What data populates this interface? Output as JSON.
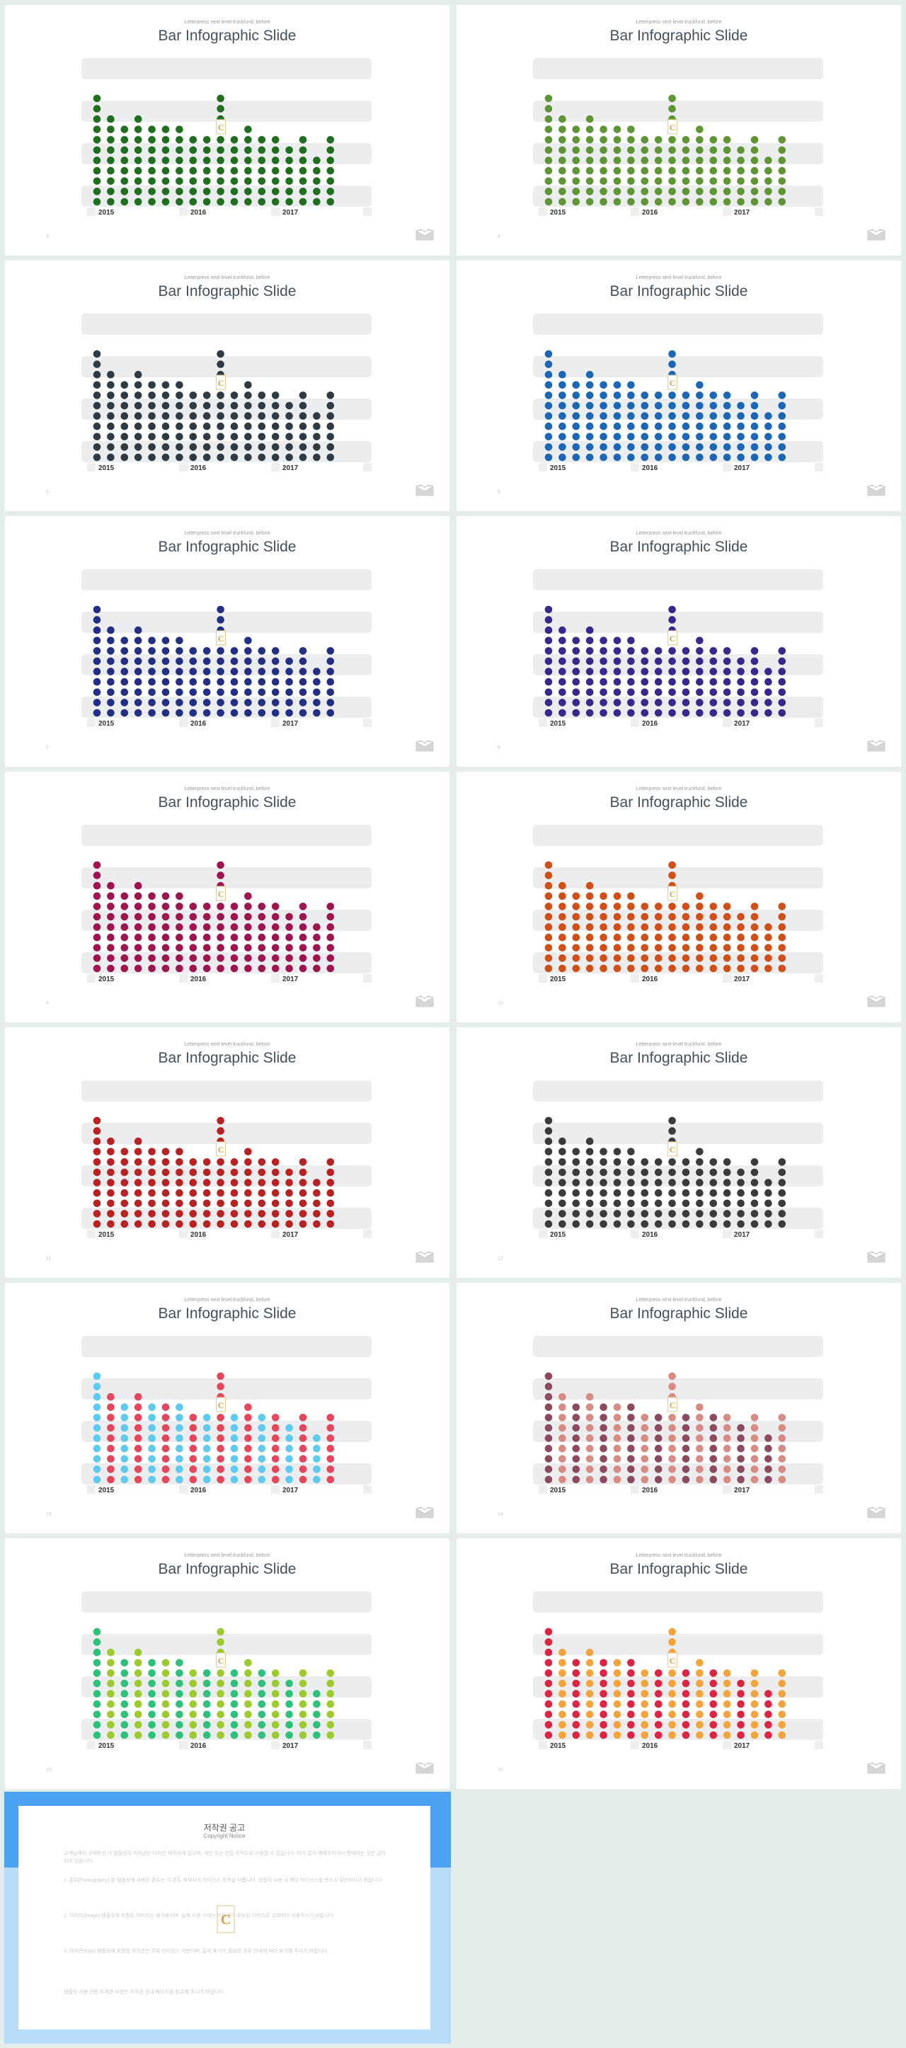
{
  "slide_subtitle": "Letterpress next level truckfund, before",
  "slide_title": "Bar Infographic Slide",
  "chart_data": {
    "type": "bar",
    "note_levels": [
      11,
      9,
      8,
      9,
      8,
      8,
      8,
      7,
      7,
      11,
      7,
      8,
      7,
      7,
      6,
      7,
      5,
      7
    ],
    "categories": [
      "2015",
      "2016",
      "2017"
    ]
  },
  "slides": [
    {
      "page": "3",
      "colors": [
        "#1f6f1f"
      ]
    },
    {
      "page": "4",
      "colors": [
        "#5f9634"
      ]
    },
    {
      "page": "5",
      "colors": [
        "#2e3b44"
      ]
    },
    {
      "page": "6",
      "colors": [
        "#1a66b8"
      ]
    },
    {
      "page": "7",
      "colors": [
        "#232e86"
      ]
    },
    {
      "page": "8",
      "colors": [
        "#3a268f"
      ]
    },
    {
      "page": "9",
      "colors": [
        "#a0134f"
      ]
    },
    {
      "page": "10",
      "colors": [
        "#d24e14"
      ]
    },
    {
      "page": "11",
      "colors": [
        "#bb2121"
      ]
    },
    {
      "page": "12",
      "colors": [
        "#3b3b3b"
      ]
    },
    {
      "page": "13",
      "colors": [
        "#5ccbef",
        "#e8455a"
      ]
    },
    {
      "page": "14",
      "colors": [
        "#8c4a5c",
        "#d98a82"
      ]
    },
    {
      "page": "15",
      "colors": [
        "#2cc27a",
        "#9ccb2c"
      ]
    },
    {
      "page": "16",
      "colors": [
        "#e02340",
        "#f5a43a"
      ]
    }
  ],
  "copyright": {
    "title": "저작권 공고",
    "subtitle": "Copyright Notice",
    "paragraphs": [
      "고객님께서 구매하신 이 템플릿의 저작권은 디자인 제작사에 있으며, 개인 또는 상업 목적으로 사용할 수 있습니다. 허가 없이 재배포하거나 판매하는 것은 금지되어 있습니다.",
      "1. 폰트(Fontography) 본 템플릿에 사용된 폰트는 각 폰트 제작사의 라이선스 정책을 따릅니다. 상업적 사용 시 해당 라이선스를 반드시 확인하시기 바랍니다.",
      "2. 이미지(Image) 템플릿에 포함된 이미지는 예시용이며, 실제 사용 시에는 저작권이 확보된 이미지로 교체하여 사용하시기 바랍니다.",
      "3. 아이콘(Icon) 템플릿에 포함된 아이콘은 무료 라이선스 기반이며, 출처 표기가 필요한 경우 안내에 따라 표기해 주시기 바랍니다.",
      "템플릿 사용 관련 자세한 사항은 저작권 안내 페이지를 참고해 주시기 바랍니다."
    ]
  }
}
